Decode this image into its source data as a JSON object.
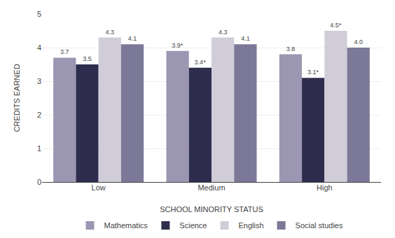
{
  "chart_data": {
    "type": "bar",
    "categories": [
      "Low",
      "Medium",
      "High"
    ],
    "series": [
      {
        "name": "Mathematics",
        "color": "#9b97b2",
        "values": [
          3.7,
          3.9,
          3.8
        ],
        "value_labels": [
          "3.7",
          "3.9*",
          "3.8"
        ]
      },
      {
        "name": "Science",
        "color": "#2e2d4e",
        "values": [
          3.5,
          3.4,
          3.1
        ],
        "value_labels": [
          "3.5",
          "3.4*",
          "3.1*"
        ]
      },
      {
        "name": "English",
        "color": "#d0cdd9",
        "values": [
          4.3,
          4.3,
          4.5
        ],
        "value_labels": [
          "4.3",
          "4.3",
          "4.5*"
        ]
      },
      {
        "name": "Social studies",
        "color": "#7b7898",
        "values": [
          4.1,
          4.1,
          4.0
        ],
        "value_labels": [
          "4.1",
          "4.1",
          "4.0"
        ]
      }
    ],
    "xlabel": "SCHOOL MINORITY STATUS",
    "ylabel": "CREDITS EARNED",
    "ylim": [
      0,
      5
    ],
    "yticks": [
      0,
      1,
      2,
      3,
      4,
      5
    ],
    "grid": true,
    "legend": "bottom",
    "data_labels": true
  }
}
